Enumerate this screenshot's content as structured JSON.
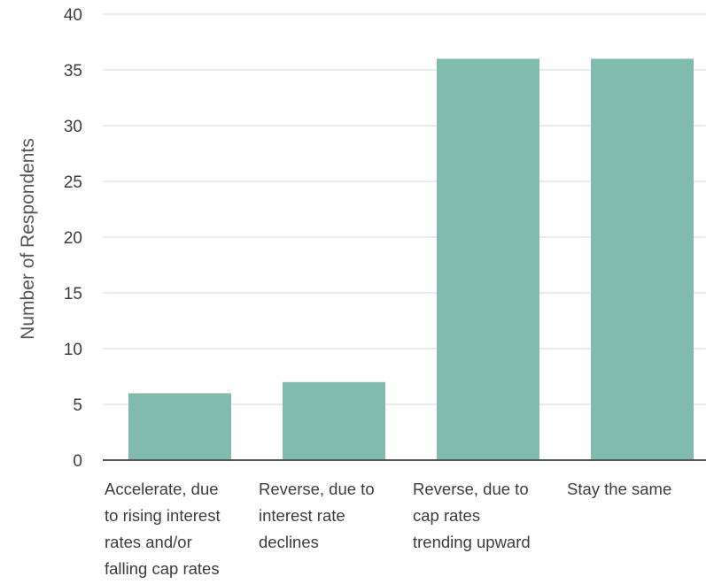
{
  "chart_data": {
    "type": "bar",
    "title": "",
    "xlabel": "",
    "ylabel": "Number of Respondents",
    "ylim": [
      0,
      40
    ],
    "yticks": [
      0,
      5,
      10,
      15,
      20,
      25,
      30,
      35,
      40
    ],
    "grid": true,
    "legend": "none",
    "categories": [
      [
        "Accelerate, due",
        "to rising interest",
        "rates and/or",
        "falling cap rates"
      ],
      [
        "Reverse, due to",
        "interest rate",
        "declines"
      ],
      [
        "Reverse, due to",
        "cap rates",
        "trending upward"
      ],
      [
        "Stay the same"
      ]
    ],
    "values": [
      6,
      7,
      36,
      36
    ]
  },
  "colors": {
    "bar": "#80bbad",
    "grid": "#c9dfd8",
    "axis": "#555555",
    "text": "#3c3c3c"
  }
}
